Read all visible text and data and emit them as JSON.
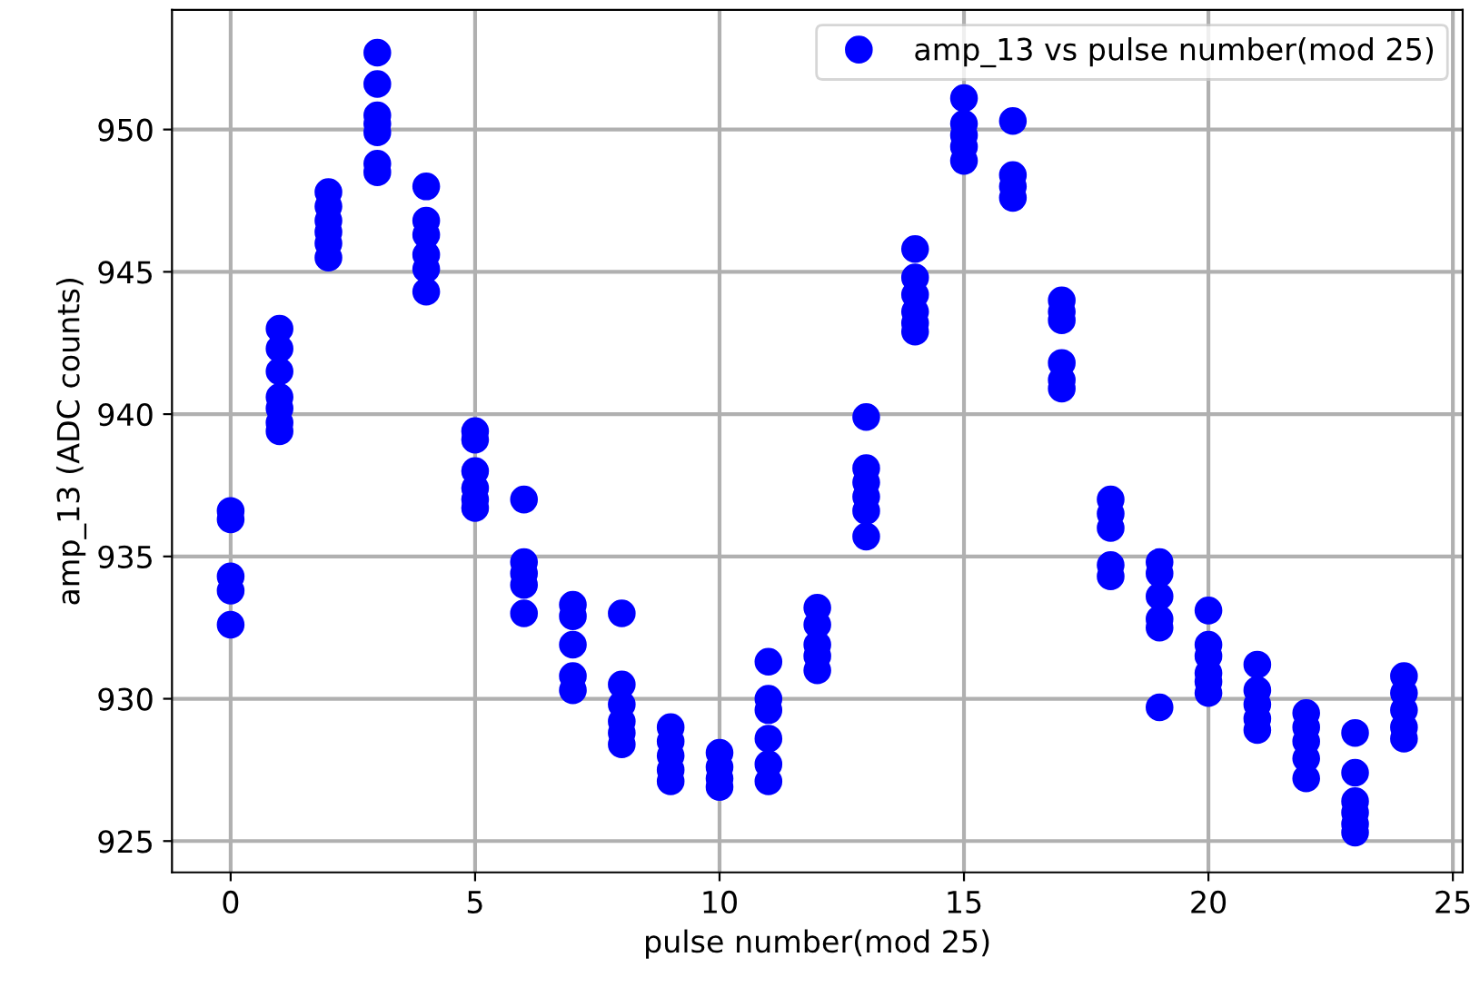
{
  "chart_data": {
    "type": "scatter",
    "xlabel": "pulse number(mod 25)",
    "ylabel": "amp_13 (ADC counts)",
    "xlim": [
      -1.2,
      25.2
    ],
    "ylim": [
      923.9,
      954.2
    ],
    "xticks": [
      0,
      5,
      10,
      15,
      20,
      25
    ],
    "yticks": [
      925,
      930,
      935,
      940,
      945,
      950
    ],
    "grid": true,
    "legend": "top right",
    "marker": "circle",
    "series": [
      {
        "name": "amp_13 vs pulse number(mod 25)",
        "color": "#0000ff",
        "x": [
          0,
          0,
          0,
          0,
          0,
          1,
          1,
          1,
          1,
          1,
          1,
          1,
          2,
          2,
          2,
          2,
          2,
          2,
          3,
          3,
          3,
          3,
          3,
          3,
          3,
          4,
          4,
          4,
          4,
          4,
          4,
          5,
          5,
          5,
          5,
          5,
          5,
          6,
          6,
          6,
          6,
          6,
          7,
          7,
          7,
          7,
          7,
          8,
          8,
          8,
          8,
          8,
          8,
          9,
          9,
          9,
          9,
          9,
          10,
          10,
          10,
          10,
          11,
          11,
          11,
          11,
          11,
          11,
          12,
          12,
          12,
          12,
          12,
          13,
          13,
          13,
          13,
          13,
          13,
          14,
          14,
          14,
          14,
          14,
          14,
          15,
          15,
          15,
          15,
          15,
          16,
          16,
          16,
          16,
          17,
          17,
          17,
          17,
          17,
          17,
          18,
          18,
          18,
          18,
          18,
          19,
          19,
          19,
          19,
          19,
          19,
          20,
          20,
          20,
          20,
          20,
          20,
          21,
          21,
          21,
          21,
          21,
          22,
          22,
          22,
          22,
          22,
          23,
          23,
          23,
          23,
          23,
          23,
          24,
          24,
          24,
          24,
          24
        ],
        "values": [
          936.6,
          936.3,
          934.3,
          933.8,
          932.6,
          943.0,
          942.3,
          941.5,
          940.6,
          940.2,
          939.7,
          939.4,
          947.8,
          947.3,
          946.8,
          946.4,
          946.0,
          945.5,
          952.7,
          951.6,
          950.5,
          950.2,
          949.9,
          948.8,
          948.5,
          948.0,
          946.8,
          946.3,
          945.6,
          945.1,
          944.3,
          939.4,
          939.1,
          938.0,
          937.4,
          937.0,
          936.7,
          937.0,
          934.8,
          934.4,
          934.0,
          933.0,
          933.3,
          932.9,
          931.9,
          930.8,
          930.3,
          933.0,
          930.5,
          929.8,
          929.2,
          928.8,
          928.4,
          929.0,
          928.5,
          928.0,
          927.5,
          927.1,
          928.1,
          927.6,
          927.2,
          926.9,
          931.3,
          930.0,
          929.6,
          928.6,
          927.7,
          927.1,
          933.2,
          932.6,
          931.9,
          931.5,
          931.0,
          939.9,
          938.1,
          937.6,
          937.1,
          936.6,
          935.7,
          945.8,
          944.8,
          944.2,
          943.6,
          943.2,
          942.9,
          951.1,
          950.2,
          949.8,
          949.4,
          948.9,
          950.3,
          948.4,
          948.0,
          947.6,
          944.0,
          943.6,
          943.3,
          941.8,
          941.2,
          940.9,
          937.0,
          936.5,
          936.0,
          934.7,
          934.3,
          934.8,
          934.4,
          933.6,
          932.8,
          932.5,
          929.7,
          933.1,
          931.9,
          931.5,
          930.9,
          930.6,
          930.2,
          931.2,
          930.3,
          929.8,
          929.3,
          928.9,
          929.5,
          929.0,
          928.5,
          927.9,
          927.2,
          928.8,
          927.4,
          926.4,
          926.0,
          925.6,
          925.3,
          930.8,
          930.2,
          929.6,
          929.0,
          928.6
        ]
      }
    ]
  }
}
